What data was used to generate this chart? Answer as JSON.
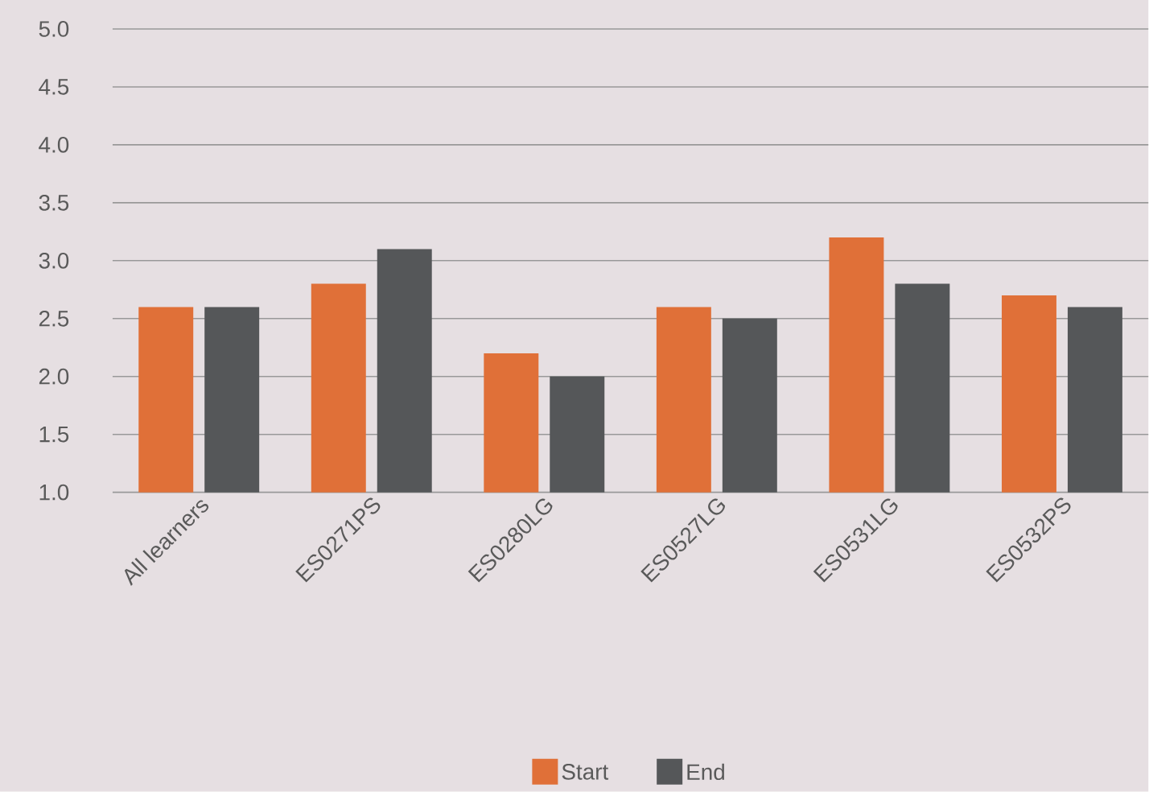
{
  "chart_data": {
    "type": "bar",
    "categories": [
      "All learners",
      "ES0271PS",
      "ES0280LG",
      "ES0527LG",
      "ES0531LG",
      "ES0532PS"
    ],
    "series": [
      {
        "name": "Start",
        "color": "#e07038",
        "values": [
          2.6,
          2.8,
          2.2,
          2.6,
          3.2,
          2.7
        ]
      },
      {
        "name": "End",
        "color": "#555759",
        "values": [
          2.6,
          3.1,
          2.0,
          2.5,
          2.8,
          2.6
        ]
      }
    ],
    "ylim": [
      1.0,
      5.0
    ],
    "yticks": [
      {
        "value": 1.0,
        "label": "1.0"
      },
      {
        "value": 1.5,
        "label": "1.5"
      },
      {
        "value": 2.0,
        "label": "2.0"
      },
      {
        "value": 2.5,
        "label": "2.5"
      },
      {
        "value": 3.0,
        "label": "3.0"
      },
      {
        "value": 3.5,
        "label": "3.5"
      },
      {
        "value": 4.0,
        "label": "4.0"
      },
      {
        "value": 4.5,
        "label": "4.5"
      },
      {
        "value": 5.0,
        "label": "5.0"
      }
    ],
    "grid": "y",
    "legend": "bottom"
  }
}
